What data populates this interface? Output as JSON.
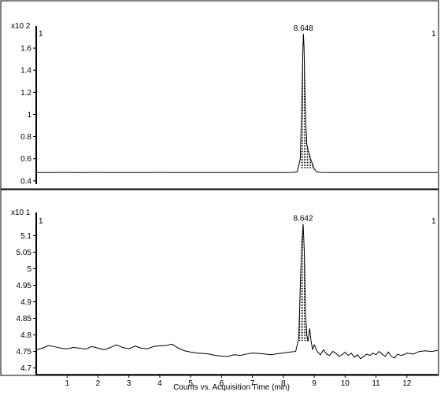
{
  "colors": {
    "trace": "#000000",
    "axis": "#000000",
    "frame": "#000000",
    "fill_pattern": "#000000",
    "background": "#ffffff"
  },
  "chart_data": [
    {
      "type": "line",
      "id": "top-chromatogram",
      "y_multiplier": "x10 2",
      "ylim": [
        0.37,
        1.8
      ],
      "xlim": [
        0,
        13
      ],
      "y_ticks": [
        "0.4",
        "0.6",
        "0.8",
        "1",
        "1.2",
        "1.4",
        "1.6"
      ],
      "corner_labels": {
        "left": "1",
        "right": "1"
      },
      "peak_label": "8.648",
      "peak": {
        "x": 8.648,
        "y": 1.73
      },
      "shaded_peak_range": [
        8.55,
        9.0
      ],
      "series": [
        {
          "x": [
            0,
            0.5,
            1,
            1.5,
            2,
            2.5,
            3,
            3.5,
            4,
            4.5,
            5,
            5.5,
            6,
            6.5,
            7,
            7.5,
            8,
            8.3,
            8.45,
            8.55,
            8.6,
            8.63,
            8.648,
            8.67,
            8.7,
            8.73,
            8.76,
            8.8,
            8.84,
            8.88,
            8.92,
            8.96,
            9.0,
            9.05,
            9.1,
            9.2,
            9.5,
            10,
            10.5,
            11,
            11.5,
            12,
            12.5,
            13
          ],
          "y": [
            0.475,
            0.475,
            0.476,
            0.475,
            0.476,
            0.475,
            0.475,
            0.475,
            0.476,
            0.475,
            0.475,
            0.475,
            0.475,
            0.475,
            0.475,
            0.475,
            0.475,
            0.476,
            0.48,
            0.6,
            1.1,
            1.55,
            1.73,
            1.62,
            1.2,
            0.9,
            0.73,
            0.68,
            0.64,
            0.6,
            0.57,
            0.54,
            0.51,
            0.49,
            0.48,
            0.476,
            0.475,
            0.475,
            0.475,
            0.475,
            0.475,
            0.475,
            0.475,
            0.475
          ]
        }
      ]
    },
    {
      "type": "line",
      "id": "bottom-chromatogram",
      "y_multiplier": "x10 1",
      "ylim": [
        4.68,
        5.17
      ],
      "xlim": [
        0,
        13
      ],
      "y_ticks": [
        "4.7",
        "4.75",
        "4.8",
        "4.85",
        "4.9",
        "4.95",
        "5",
        "5.05",
        "5.1"
      ],
      "x_ticks": [
        "1",
        "2",
        "3",
        "4",
        "5",
        "6",
        "7",
        "8",
        "9",
        "10",
        "11",
        "12"
      ],
      "xlabel": "Counts vs. Acquisition Time (min)",
      "corner_labels": {
        "left": "1",
        "right": "1"
      },
      "peak_label": "8.642",
      "peak": {
        "x": 8.642,
        "y": 5.135
      },
      "shaded_peak_range": [
        8.5,
        8.8
      ],
      "series": [
        {
          "x": [
            0,
            0.2,
            0.4,
            0.6,
            0.8,
            1,
            1.2,
            1.4,
            1.6,
            1.8,
            2,
            2.2,
            2.4,
            2.6,
            2.8,
            3,
            3.2,
            3.4,
            3.6,
            3.8,
            4,
            4.2,
            4.4,
            4.6,
            4.8,
            5,
            5.2,
            5.4,
            5.6,
            5.8,
            6,
            6.2,
            6.4,
            6.6,
            6.8,
            7,
            7.2,
            7.4,
            7.6,
            7.8,
            8,
            8.2,
            8.4,
            8.5,
            8.55,
            8.6,
            8.642,
            8.68,
            8.72,
            8.76,
            8.8,
            8.85,
            8.9,
            8.95,
            9.0,
            9.1,
            9.2,
            9.3,
            9.4,
            9.5,
            9.6,
            9.7,
            9.8,
            9.9,
            10,
            10.1,
            10.2,
            10.3,
            10.4,
            10.5,
            10.6,
            10.7,
            10.8,
            10.9,
            11,
            11.1,
            11.2,
            11.3,
            11.4,
            11.5,
            11.6,
            11.7,
            11.8,
            11.9,
            12,
            12.2,
            12.4,
            12.6,
            12.8,
            13
          ],
          "y": [
            4.755,
            4.76,
            4.768,
            4.764,
            4.76,
            4.758,
            4.762,
            4.76,
            4.757,
            4.765,
            4.76,
            4.755,
            4.762,
            4.77,
            4.762,
            4.758,
            4.766,
            4.76,
            4.758,
            4.765,
            4.767,
            4.768,
            4.772,
            4.76,
            4.752,
            4.748,
            4.745,
            4.744,
            4.742,
            4.738,
            4.736,
            4.735,
            4.74,
            4.738,
            4.742,
            4.745,
            4.744,
            4.742,
            4.74,
            4.743,
            4.745,
            4.748,
            4.75,
            4.79,
            4.95,
            5.08,
            5.135,
            5.05,
            4.86,
            4.8,
            4.78,
            4.82,
            4.78,
            4.755,
            4.77,
            4.75,
            4.74,
            4.755,
            4.742,
            4.738,
            4.75,
            4.745,
            4.735,
            4.74,
            4.748,
            4.738,
            4.745,
            4.732,
            4.74,
            4.728,
            4.735,
            4.742,
            4.738,
            4.745,
            4.74,
            4.75,
            4.742,
            4.735,
            4.748,
            4.735,
            4.73,
            4.742,
            4.738,
            4.74,
            4.745,
            4.742,
            4.75,
            4.752,
            4.75,
            4.753
          ]
        }
      ]
    }
  ]
}
